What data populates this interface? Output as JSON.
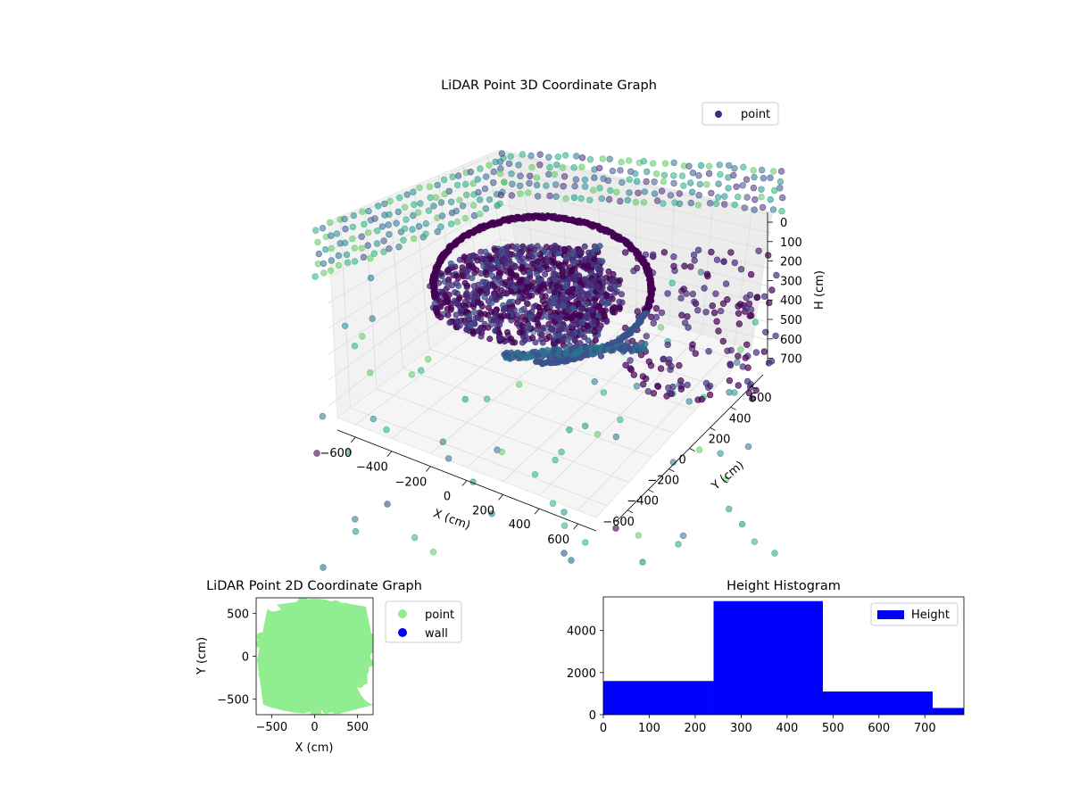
{
  "chart_data": [
    {
      "type": "scatter",
      "projection": "3d",
      "title": "LiDAR Point 3D Coordinate Graph",
      "xlabel": "X (cm)",
      "ylabel": "Y (cm)",
      "zlabel": "H (cm)",
      "xlim": [
        -700,
        700
      ],
      "ylim": [
        -700,
        700
      ],
      "zlim": [
        750,
        0
      ],
      "xticks": [
        "−600",
        "−400",
        "−200",
        "0",
        "200",
        "400",
        "600"
      ],
      "yticks": [
        "−600",
        "−400",
        "−200",
        "0",
        "200",
        "400",
        "600"
      ],
      "zticks": [
        "0",
        "100",
        "200",
        "300",
        "400",
        "500",
        "600",
        "700"
      ],
      "colormap": "viridis",
      "grid": true,
      "legend": {
        "position": "top-right",
        "entries": [
          {
            "label": "point",
            "color": "#3b2f7e"
          }
        ]
      }
    },
    {
      "type": "scatter",
      "title": "LiDAR Point 2D Coordinate Graph",
      "xlabel": "X (cm)",
      "ylabel": "Y (cm)",
      "xlim": [
        -680,
        680
      ],
      "ylim": [
        -680,
        680
      ],
      "xticks": [
        "−500",
        "0",
        "500"
      ],
      "yticks": [
        "−500",
        "0",
        "500"
      ],
      "series": [
        {
          "name": "point",
          "color": "#90ee90"
        },
        {
          "name": "wall",
          "color": "#0000ff"
        }
      ],
      "legend": {
        "position": "outside-right"
      }
    },
    {
      "type": "bar",
      "subtype": "histogram",
      "title": "Height Histogram",
      "xlim": [
        0,
        785
      ],
      "ylim": [
        0,
        5600
      ],
      "xticks": [
        "0",
        "100",
        "200",
        "300",
        "400",
        "500",
        "600",
        "700"
      ],
      "yticks": [
        "0",
        "2000",
        "4000"
      ],
      "bins": [
        {
          "start": 0,
          "end": 240,
          "count": 1600
        },
        {
          "start": 240,
          "end": 478,
          "count": 5400
        },
        {
          "start": 478,
          "end": 717,
          "count": 1100
        },
        {
          "start": 717,
          "end": 785,
          "count": 320
        }
      ],
      "series": [
        {
          "name": "Height",
          "color": "#0000ff"
        }
      ],
      "legend": {
        "position": "top-right"
      }
    }
  ]
}
